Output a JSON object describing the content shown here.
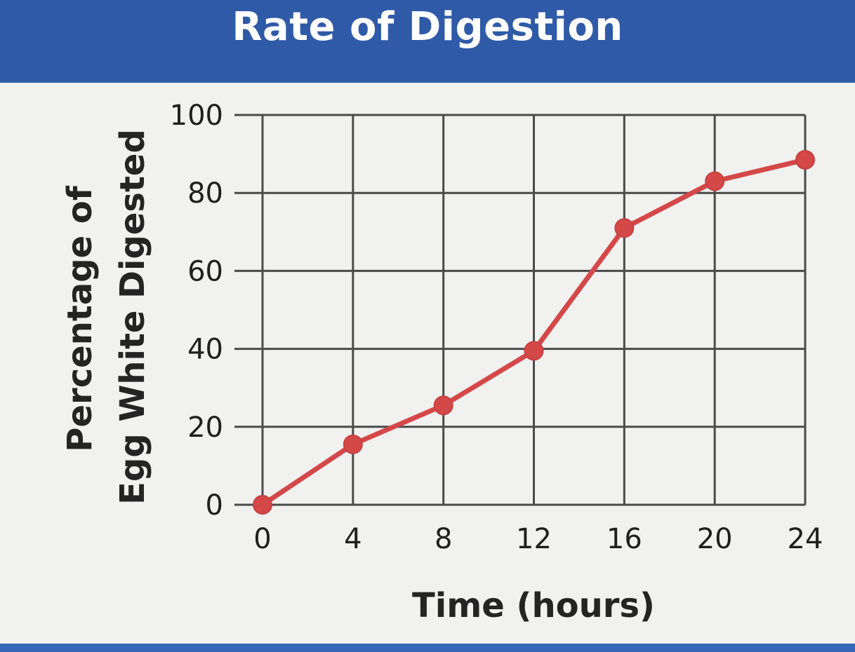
{
  "chart_data": {
    "type": "line",
    "title": "Rate of Digestion",
    "xlabel": "Time (hours)",
    "ylabel_lines": [
      "Percentage of",
      "Egg White Digested"
    ],
    "x": [
      0,
      4,
      8,
      12,
      16,
      20,
      24
    ],
    "x_ticks": [
      "0",
      "4",
      "8",
      "12",
      "16",
      "20",
      "24"
    ],
    "y_ticks": [
      "0",
      "20",
      "40",
      "60",
      "80",
      "100"
    ],
    "xlim": [
      0,
      24
    ],
    "ylim": [
      0,
      100
    ],
    "series": [
      {
        "values": [
          0,
          15.5,
          25.5,
          39.5,
          71,
          83,
          88.5
        ]
      }
    ],
    "grid": true,
    "line_color": "#d54848",
    "marker_color": "#d54848",
    "grid_color": "#4a4a4a",
    "title_bar_color": "#2f5aa7"
  }
}
